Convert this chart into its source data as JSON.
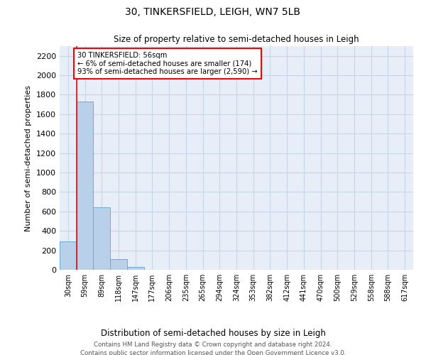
{
  "title": "30, TINKERSFIELD, LEIGH, WN7 5LB",
  "subtitle": "Size of property relative to semi-detached houses in Leigh",
  "xlabel": "Distribution of semi-detached houses by size in Leigh",
  "ylabel": "Number of semi-detached properties",
  "bar_categories": [
    "30sqm",
    "59sqm",
    "89sqm",
    "118sqm",
    "147sqm",
    "177sqm",
    "206sqm",
    "235sqm",
    "265sqm",
    "294sqm",
    "324sqm",
    "353sqm",
    "382sqm",
    "412sqm",
    "441sqm",
    "470sqm",
    "500sqm",
    "529sqm",
    "558sqm",
    "588sqm",
    "617sqm"
  ],
  "bar_values": [
    290,
    1730,
    645,
    110,
    30,
    0,
    0,
    0,
    0,
    0,
    0,
    0,
    0,
    0,
    0,
    0,
    0,
    0,
    0,
    0,
    0
  ],
  "bar_color": "#b8d0ea",
  "bar_edge_color": "#6aaad4",
  "grid_color": "#c8d4e8",
  "bg_color": "#e8eef8",
  "ylim": [
    0,
    2300
  ],
  "yticks": [
    0,
    200,
    400,
    600,
    800,
    1000,
    1200,
    1400,
    1600,
    1800,
    2000,
    2200
  ],
  "annotation_box_text": "30 TINKERSFIELD: 56sqm\n← 6% of semi-detached houses are smaller (174)\n93% of semi-detached houses are larger (2,590) →",
  "footer_line1": "Contains HM Land Registry data © Crown copyright and database right 2024.",
  "footer_line2": "Contains public sector information licensed under the Open Government Licence v3.0."
}
